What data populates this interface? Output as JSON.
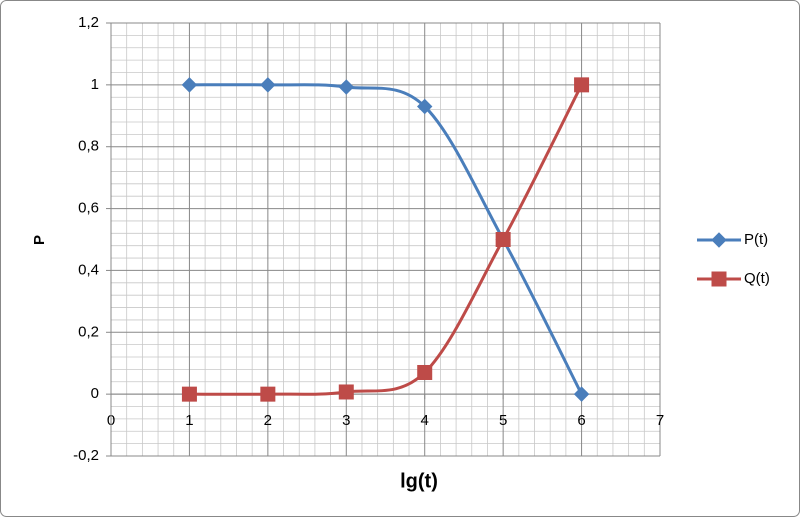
{
  "chart_data": {
    "type": "line",
    "xlabel": "lg(t)",
    "ylabel": "P",
    "x": [
      1,
      2,
      3,
      4,
      5,
      6
    ],
    "series": [
      {
        "name": "P(t)",
        "color": "#4a7ebb",
        "marker": "diamond",
        "values": [
          1,
          1,
          0.993,
          0.93,
          0.5,
          0
        ]
      },
      {
        "name": "Q(t)",
        "color": "#be4b48",
        "marker": "square",
        "values": [
          0,
          0,
          0.007,
          0.07,
          0.5,
          1
        ]
      }
    ],
    "xlim": [
      0,
      7
    ],
    "xticks": [
      0,
      1,
      2,
      3,
      4,
      5,
      6,
      7
    ],
    "ylim": [
      -0.2,
      1.2
    ],
    "yticks": [
      {
        "value": -0.2,
        "label": "-0,2"
      },
      0,
      {
        "value": 0.2,
        "label": "0,2"
      },
      {
        "value": 0.4,
        "label": "0,4"
      },
      {
        "value": 0.6,
        "label": "0,6"
      },
      {
        "value": 0.8,
        "label": "0,8"
      },
      1,
      {
        "value": 1.2,
        "label": "1,2"
      }
    ],
    "grid": true,
    "smooth": true,
    "legend": "right"
  }
}
